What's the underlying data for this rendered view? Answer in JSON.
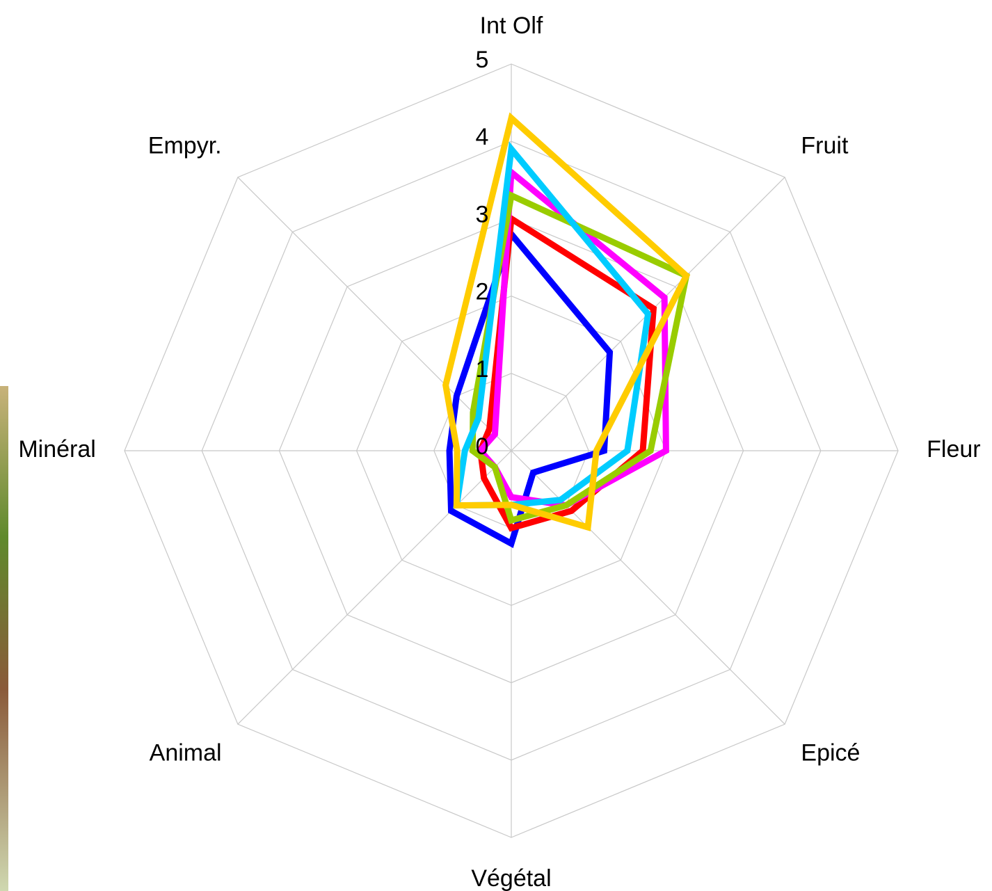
{
  "chart_data": {
    "type": "radar",
    "categories": [
      "Int Olf",
      "Fruit",
      "Fleur",
      "Epicé",
      "Végétal",
      "Animal",
      "Minéral",
      "Empyr."
    ],
    "ylim": [
      0,
      5
    ],
    "yticks": [
      0,
      1,
      2,
      3,
      4,
      5
    ],
    "grid": true,
    "series": [
      {
        "color": "#0000ff",
        "values": [
          2.8,
          1.8,
          1.2,
          0.4,
          1.2,
          1.1,
          0.8,
          1.0
        ]
      },
      {
        "color": "#ff0000",
        "values": [
          3.0,
          2.6,
          1.7,
          1.1,
          1.0,
          0.5,
          0.4,
          0.4
        ]
      },
      {
        "color": "#ff00ff",
        "values": [
          3.6,
          2.8,
          2.0,
          1.0,
          0.6,
          0.3,
          0.4,
          0.3
        ]
      },
      {
        "color": "#99cc00",
        "values": [
          3.3,
          3.2,
          1.8,
          1.0,
          0.9,
          0.3,
          0.5,
          0.7
        ]
      },
      {
        "color": "#00ccff",
        "values": [
          3.9,
          2.5,
          1.5,
          0.9,
          0.7,
          1.0,
          0.6,
          0.6
        ]
      },
      {
        "color": "#ffcc00",
        "values": [
          4.3,
          3.2,
          1.1,
          1.4,
          0.7,
          1.0,
          0.7,
          1.2
        ]
      }
    ]
  }
}
